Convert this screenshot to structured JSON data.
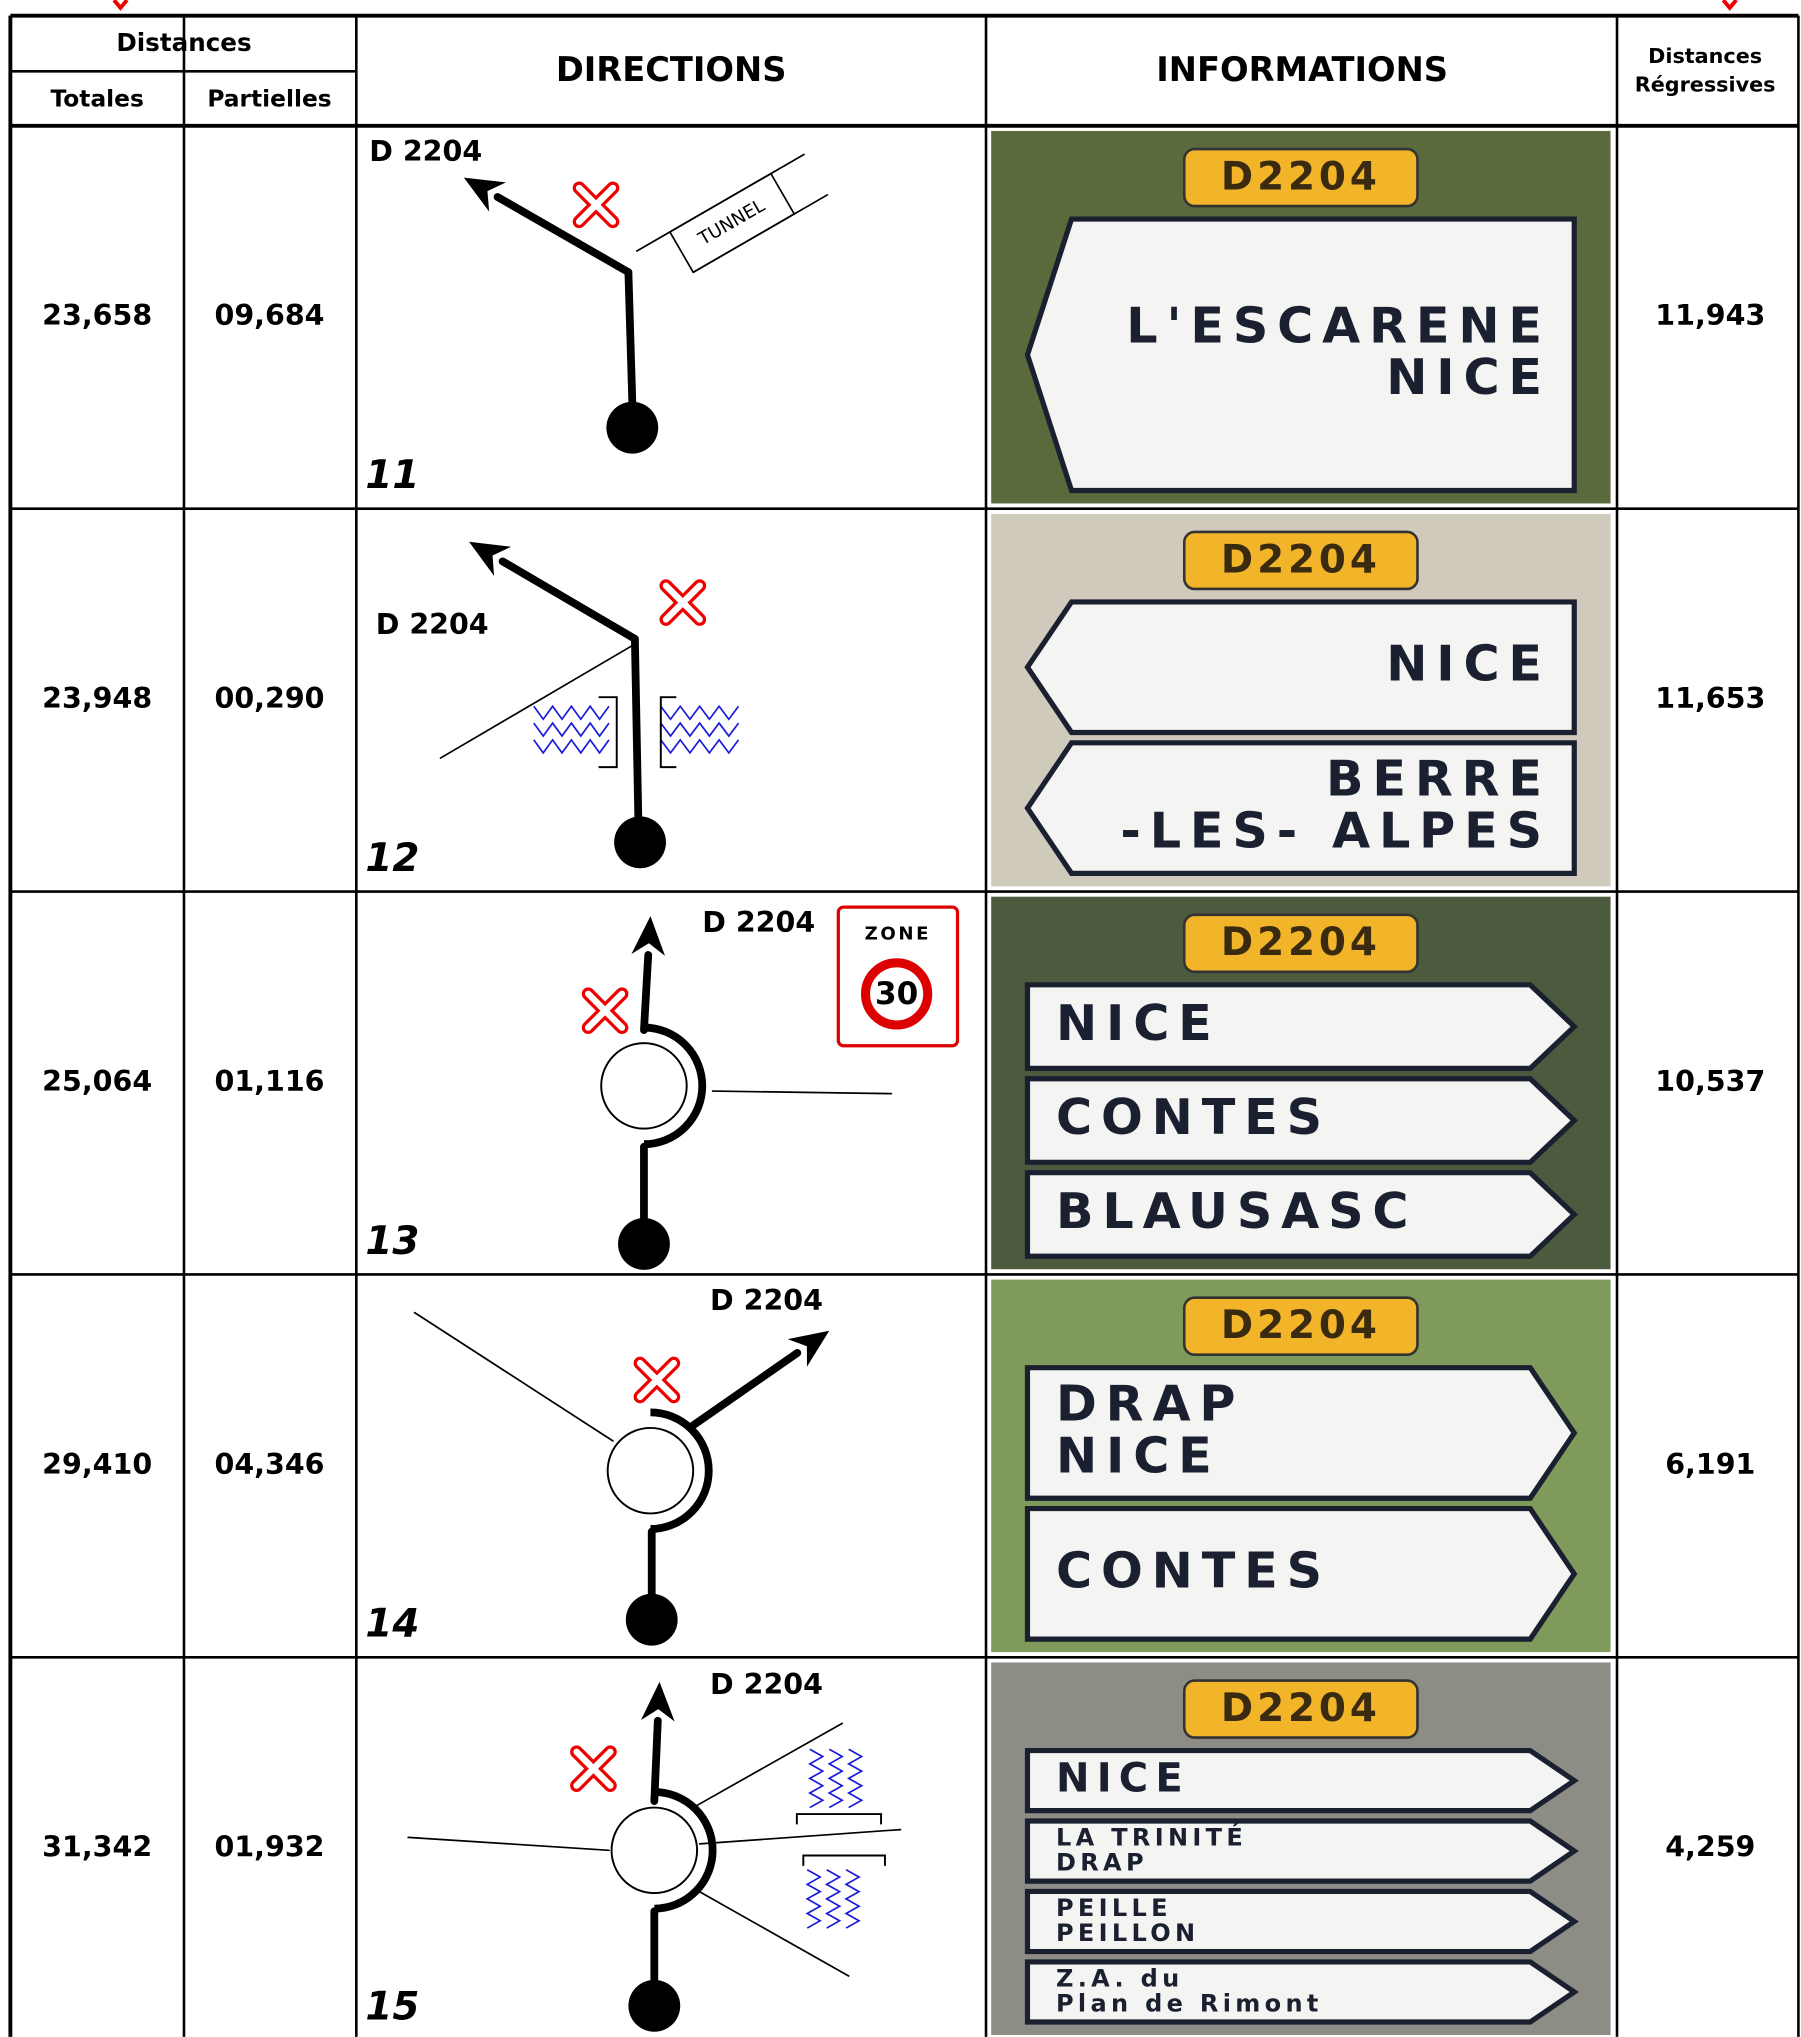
{
  "header": {
    "distances": "Distances",
    "totales": "Totales",
    "partielles": "Partielles",
    "directions": "DIRECTIONS",
    "informations": "INFORMATIONS",
    "regressives": [
      "Distances",
      "Régressives"
    ]
  },
  "rows": [
    {
      "totale": "23,658",
      "partielle": "09,684",
      "road": "D 2204",
      "number": "11",
      "regressive": "11,943",
      "tunnel": "TUNNEL",
      "sign": {
        "road": "D2204",
        "panels": [
          [
            "L'ESCARENE",
            "NICE"
          ]
        ]
      }
    },
    {
      "totale": "23,948",
      "partielle": "00,290",
      "road": "D 2204",
      "number": "12",
      "regressive": "11,653",
      "sign": {
        "road": "D2204",
        "panels": [
          [
            "NICE"
          ],
          [
            "BERRE",
            "-LES- ALPES"
          ]
        ]
      }
    },
    {
      "totale": "25,064",
      "partielle": "01,116",
      "road": "D 2204",
      "number": "13",
      "regressive": "10,537",
      "zone": {
        "label": "ZONE",
        "limit": "30"
      },
      "sign": {
        "road": "D2204",
        "panels": [
          [
            "NICE"
          ],
          [
            "CONTES"
          ],
          [
            "BLAUSASC"
          ]
        ]
      }
    },
    {
      "totale": "29,410",
      "partielle": "04,346",
      "road": "D 2204",
      "number": "14",
      "regressive": "6,191",
      "sign": {
        "road": "D2204",
        "panels": [
          [
            "DRAP",
            "NICE"
          ],
          [
            "CONTES"
          ]
        ]
      }
    },
    {
      "totale": "31,342",
      "partielle": "01,932",
      "road": "D 2204",
      "number": "15",
      "regressive": "4,259",
      "sign": {
        "road": "D2204",
        "panels": [
          [
            "NICE"
          ],
          [
            "LA TRINITÉ",
            "DRAP"
          ],
          [
            "PEILLE",
            "PEILLON"
          ],
          [
            "Z.A. du",
            "Plan de Rimont"
          ]
        ]
      }
    }
  ]
}
